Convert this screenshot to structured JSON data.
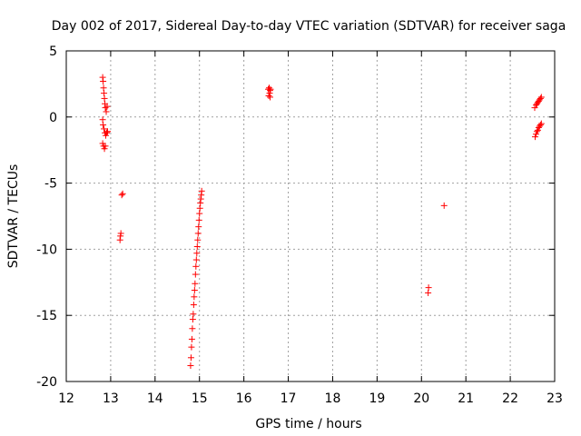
{
  "chart_data": {
    "type": "scatter",
    "title": "Day 002 of 2017, Sidereal Day-to-day VTEC variation (SDTVAR) for receiver saga",
    "xlabel": "GPS time / hours",
    "ylabel": "SDTVAR / TECUs",
    "xlim": [
      12,
      23
    ],
    "ylim": [
      -20,
      5
    ],
    "xticks": [
      12,
      13,
      14,
      15,
      16,
      17,
      18,
      19,
      20,
      21,
      22,
      23
    ],
    "yticks": [
      -20,
      -15,
      -10,
      -5,
      0,
      5
    ],
    "xtick_labels": [
      "12",
      "13",
      "14",
      "15",
      "16",
      "17",
      "18",
      "19",
      "20",
      "21",
      "22",
      "23"
    ],
    "ytick_labels": [
      "-20",
      "-15",
      "-10",
      "-5",
      "0",
      "5"
    ],
    "grid": true,
    "marker": "+",
    "color": "#ff0000",
    "series": [
      {
        "name": "SDTVAR",
        "x": [
          12.82,
          12.83,
          12.84,
          12.85,
          12.86,
          12.87,
          12.88,
          12.9,
          12.92,
          12.93,
          12.82,
          12.83,
          12.85,
          12.87,
          12.89,
          12.91,
          12.93,
          12.82,
          12.84,
          12.86,
          12.88,
          13.27,
          13.25,
          13.23,
          13.22,
          13.21,
          14.8,
          14.81,
          14.82,
          14.83,
          14.84,
          14.85,
          14.86,
          14.87,
          14.88,
          14.89,
          14.9,
          14.91,
          14.92,
          14.93,
          14.94,
          14.95,
          14.96,
          14.97,
          14.98,
          14.99,
          15.0,
          15.01,
          15.02,
          15.03,
          15.04,
          15.05,
          16.55,
          16.57,
          16.59,
          16.6,
          16.56,
          16.58,
          16.59,
          20.15,
          20.16,
          20.51,
          22.55,
          22.58,
          22.6,
          22.62,
          22.64,
          22.66,
          22.68,
          22.7,
          22.56,
          22.58,
          22.6,
          22.62,
          22.64,
          22.66,
          22.68,
          22.7
        ],
        "y": [
          3.0,
          2.7,
          2.2,
          1.8,
          1.4,
          1.0,
          0.7,
          0.4,
          0.8,
          -1.1,
          -0.2,
          -0.6,
          -0.9,
          -1.2,
          -1.4,
          -1.2,
          -1.1,
          -2.0,
          -2.2,
          -2.4,
          -2.2,
          -5.8,
          -5.9,
          -8.8,
          -9.0,
          -9.3,
          -18.8,
          -18.2,
          -17.4,
          -16.8,
          -16.0,
          -15.3,
          -14.9,
          -14.2,
          -13.6,
          -13.1,
          -12.6,
          -11.9,
          -11.3,
          -10.8,
          -10.3,
          -9.8,
          -9.3,
          -8.8,
          -8.3,
          -7.8,
          -7.3,
          -6.9,
          -6.5,
          -6.2,
          -5.9,
          -5.6,
          2.1,
          2.2,
          2.0,
          2.1,
          1.6,
          1.8,
          1.5,
          -13.3,
          -12.9,
          -6.7,
          0.7,
          0.9,
          1.0,
          1.1,
          1.2,
          1.3,
          1.4,
          1.5,
          -1.5,
          -1.3,
          -1.1,
          -1.0,
          -0.8,
          -0.7,
          -0.6,
          -0.5
        ]
      }
    ]
  }
}
